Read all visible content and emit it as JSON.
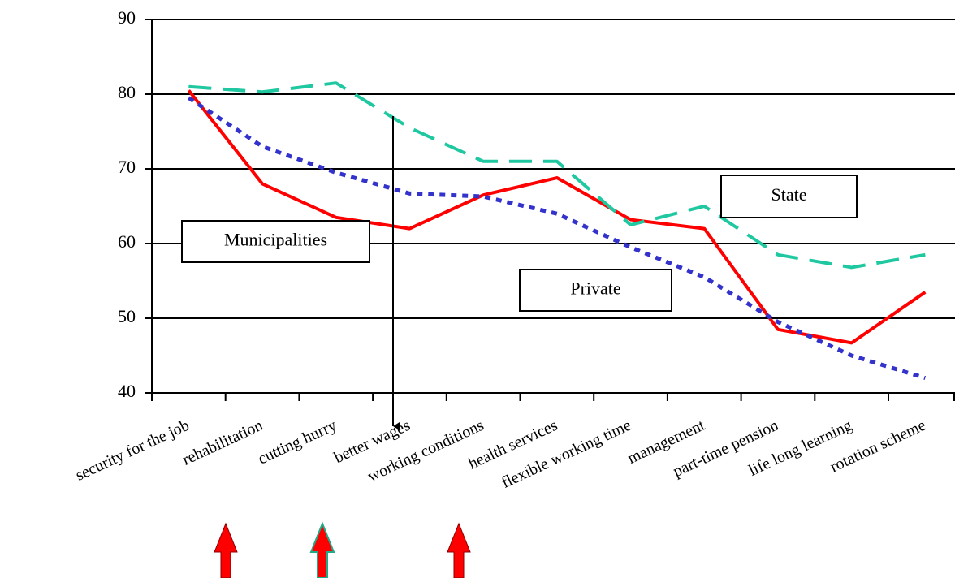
{
  "chart_data": {
    "type": "line",
    "categories": [
      "security for the job",
      "rehabilitation",
      "cutting hurry",
      "better wages",
      "working conditions",
      "health services",
      "flexible working time",
      "management",
      "part-time pension",
      "life long learning",
      "rotation scheme"
    ],
    "series": [
      {
        "name": "Municipalities",
        "color": "#ff0000",
        "values": [
          80.5,
          68,
          63.5,
          62,
          66.5,
          68.8,
          63.2,
          62,
          48.5,
          46.7,
          53.5
        ]
      },
      {
        "name": "State",
        "color": "#1fc8a0",
        "values": [
          81,
          80.3,
          81.5,
          75.5,
          71,
          71,
          62.5,
          65,
          58.5,
          56.8,
          58.5
        ]
      },
      {
        "name": "Private",
        "color": "#3333cc",
        "values": [
          79.5,
          73,
          69.5,
          66.7,
          66.3,
          64,
          59.5,
          55.5,
          49.5,
          45,
          42
        ]
      }
    ],
    "ylim": [
      40,
      90
    ],
    "yticks": [
      40,
      50,
      60,
      70,
      80,
      90
    ],
    "grid": true
  }
}
